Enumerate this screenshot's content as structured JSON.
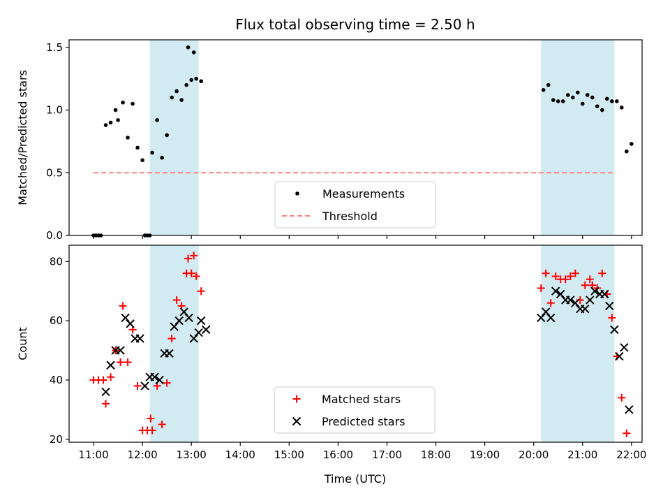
{
  "chart_data": {
    "title": "Flux total observing time = 2.50 h",
    "xlabel": "Time (UTC)",
    "x_ticks": [
      "11:00",
      "12:00",
      "13:00",
      "14:00",
      "15:00",
      "16:00",
      "17:00",
      "18:00",
      "19:00",
      "20:00",
      "21:00",
      "22:00"
    ],
    "xlim": [
      "10:30",
      "22:13"
    ],
    "shaded_intervals": [
      [
        "12:09",
        "13:09"
      ],
      [
        "20:09",
        "21:39"
      ]
    ],
    "shade_color": "#add8e6",
    "panels": [
      {
        "type": "scatter",
        "ylabel": "Matched/Predicted stars",
        "ylim": [
          0,
          1.56
        ],
        "y_ticks": [
          0.0,
          0.5,
          1.0,
          1.5
        ],
        "y_tick_labels": [
          "0.0",
          "0.5",
          "1.0",
          "1.5"
        ],
        "legend_position": "bottom-center",
        "series": [
          {
            "name": "Measurements",
            "marker": "dot",
            "color": "#000000",
            "points": [
              [
                "11:00",
                0.0
              ],
              [
                "11:03",
                0.0
              ],
              [
                "11:06",
                0.0
              ],
              [
                "11:09",
                0.0
              ],
              [
                "11:15",
                0.88
              ],
              [
                "11:21",
                0.9
              ],
              [
                "11:27",
                1.0
              ],
              [
                "11:30",
                0.92
              ],
              [
                "11:36",
                1.06
              ],
              [
                "11:42",
                0.78
              ],
              [
                "11:48",
                1.05
              ],
              [
                "11:54",
                0.7
              ],
              [
                "12:00",
                0.6
              ],
              [
                "12:03",
                0.0
              ],
              [
                "12:06",
                0.0
              ],
              [
                "12:09",
                0.0
              ],
              [
                "12:12",
                0.66
              ],
              [
                "12:18",
                0.92
              ],
              [
                "12:24",
                0.62
              ],
              [
                "12:30",
                0.8
              ],
              [
                "12:36",
                1.1
              ],
              [
                "12:42",
                1.15
              ],
              [
                "12:48",
                1.08
              ],
              [
                "12:54",
                1.2
              ],
              [
                "13:00",
                1.24
              ],
              [
                "12:56",
                1.5
              ],
              [
                "13:03",
                1.46
              ],
              [
                "13:06",
                1.25
              ],
              [
                "13:12",
                1.23
              ],
              [
                "20:12",
                1.16
              ],
              [
                "20:18",
                1.2
              ],
              [
                "20:24",
                1.08
              ],
              [
                "20:30",
                1.07
              ],
              [
                "20:36",
                1.07
              ],
              [
                "20:42",
                1.12
              ],
              [
                "20:48",
                1.1
              ],
              [
                "20:54",
                1.14
              ],
              [
                "21:00",
                1.05
              ],
              [
                "21:06",
                1.12
              ],
              [
                "21:12",
                1.1
              ],
              [
                "21:18",
                1.03
              ],
              [
                "21:24",
                1.0
              ],
              [
                "21:30",
                1.09
              ],
              [
                "21:36",
                1.07
              ],
              [
                "21:42",
                1.07
              ],
              [
                "21:48",
                1.02
              ],
              [
                "21:54",
                0.67
              ],
              [
                "22:00",
                0.73
              ]
            ]
          },
          {
            "name": "Threshold",
            "style": "dashed-line",
            "color": "#ff7f7f",
            "points": [
              [
                "11:00",
                0.5
              ],
              [
                "21:39",
                0.5
              ]
            ]
          }
        ]
      },
      {
        "type": "scatter",
        "ylabel": "Count",
        "ylim": [
          19,
          85.5
        ],
        "y_ticks": [
          20,
          40,
          60,
          80
        ],
        "y_tick_labels": [
          "20",
          "40",
          "60",
          "80"
        ],
        "legend_position": "bottom-center",
        "series": [
          {
            "name": "Matched stars",
            "marker": "plus",
            "color": "#ff0000",
            "points": [
              [
                "11:00",
                40
              ],
              [
                "11:06",
                40
              ],
              [
                "11:12",
                40
              ],
              [
                "11:15",
                32
              ],
              [
                "11:21",
                41
              ],
              [
                "11:27",
                50
              ],
              [
                "11:33",
                46
              ],
              [
                "11:36",
                65
              ],
              [
                "11:42",
                46
              ],
              [
                "11:48",
                57
              ],
              [
                "11:54",
                38
              ],
              [
                "12:00",
                23
              ],
              [
                "12:06",
                23
              ],
              [
                "12:12",
                23
              ],
              [
                "12:10",
                27
              ],
              [
                "12:18",
                38
              ],
              [
                "12:24",
                25
              ],
              [
                "12:30",
                39
              ],
              [
                "12:36",
                54
              ],
              [
                "12:42",
                67
              ],
              [
                "12:48",
                65
              ],
              [
                "12:54",
                76
              ],
              [
                "13:00",
                76
              ],
              [
                "12:56",
                81
              ],
              [
                "13:03",
                82
              ],
              [
                "13:06",
                75
              ],
              [
                "13:12",
                70
              ],
              [
                "20:09",
                71
              ],
              [
                "20:15",
                76
              ],
              [
                "20:21",
                66
              ],
              [
                "20:27",
                75
              ],
              [
                "20:33",
                74
              ],
              [
                "20:39",
                74
              ],
              [
                "20:45",
                75
              ],
              [
                "20:51",
                76
              ],
              [
                "20:57",
                67
              ],
              [
                "21:03",
                72
              ],
              [
                "21:09",
                74
              ],
              [
                "21:12",
                72
              ],
              [
                "21:18",
                71
              ],
              [
                "21:24",
                76
              ],
              [
                "21:30",
                69
              ],
              [
                "21:36",
                61
              ],
              [
                "21:42",
                48
              ],
              [
                "21:48",
                34
              ],
              [
                "21:54",
                22
              ]
            ]
          },
          {
            "name": "Predicted stars",
            "marker": "x",
            "color": "#000000",
            "points": [
              [
                "11:15",
                36
              ],
              [
                "11:21",
                45
              ],
              [
                "11:27",
                50
              ],
              [
                "11:33",
                50
              ],
              [
                "11:39",
                61
              ],
              [
                "11:45",
                59
              ],
              [
                "11:51",
                54
              ],
              [
                "11:57",
                54
              ],
              [
                "12:03",
                38
              ],
              [
                "12:09",
                41
              ],
              [
                "12:15",
                41
              ],
              [
                "12:21",
                40
              ],
              [
                "12:27",
                49
              ],
              [
                "12:33",
                49
              ],
              [
                "12:39",
                58
              ],
              [
                "12:45",
                60
              ],
              [
                "12:51",
                63
              ],
              [
                "12:57",
                61
              ],
              [
                "13:03",
                54
              ],
              [
                "13:09",
                56
              ],
              [
                "13:12",
                60
              ],
              [
                "13:18",
                57
              ],
              [
                "20:09",
                61
              ],
              [
                "20:15",
                63
              ],
              [
                "20:21",
                61
              ],
              [
                "20:27",
                70
              ],
              [
                "20:33",
                69
              ],
              [
                "20:39",
                67
              ],
              [
                "20:45",
                67
              ],
              [
                "20:51",
                66
              ],
              [
                "20:57",
                64
              ],
              [
                "21:03",
                64
              ],
              [
                "21:09",
                67
              ],
              [
                "21:15",
                70
              ],
              [
                "21:21",
                69
              ],
              [
                "21:27",
                69
              ],
              [
                "21:33",
                65
              ],
              [
                "21:39",
                57
              ],
              [
                "21:45",
                48
              ],
              [
                "21:51",
                51
              ],
              [
                "21:57",
                30
              ]
            ]
          }
        ]
      }
    ]
  }
}
